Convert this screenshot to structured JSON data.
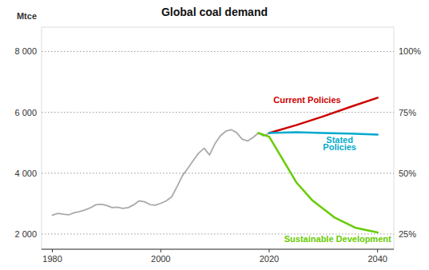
{
  "chart_data": {
    "type": "line",
    "title": "Global coal demand",
    "y_label": "Mtce",
    "xlim": [
      1978,
      2043
    ],
    "ylim": [
      1500,
      8800
    ],
    "xticks": [
      1980,
      2000,
      2020,
      2040
    ],
    "yticks": [
      {
        "value": 2000,
        "label": "2 000"
      },
      {
        "value": 4000,
        "label": "4 000"
      },
      {
        "value": 6000,
        "label": "6 000"
      },
      {
        "value": 8000,
        "label": "8 000"
      }
    ],
    "y2lim": [
      18.75,
      110
    ],
    "y2ticks": [
      {
        "value": 25,
        "label": "25%"
      },
      {
        "value": 50,
        "label": "50%"
      },
      {
        "value": 75,
        "label": "75%"
      },
      {
        "value": 100,
        "label": "100%"
      }
    ],
    "grid": true,
    "series": [
      {
        "color": "#aaaaaa",
        "x": [
          1980,
          1981,
          1982,
          1983,
          1984,
          1985,
          1986,
          1987,
          1988,
          1989,
          1990,
          1991,
          1992,
          1993,
          1994,
          1995,
          1996,
          1997,
          1998,
          1999,
          2000,
          2001,
          2002,
          2003,
          2004,
          2005,
          2006,
          2007,
          2008,
          2009,
          2010,
          2011,
          2012,
          2013,
          2014,
          2015,
          2016,
          2017,
          2018,
          2019,
          2020
        ],
        "values": [
          2620,
          2680,
          2650,
          2630,
          2700,
          2740,
          2790,
          2860,
          2960,
          2980,
          2940,
          2870,
          2880,
          2840,
          2870,
          2960,
          3090,
          3060,
          2970,
          2950,
          3010,
          3090,
          3220,
          3560,
          3920,
          4160,
          4420,
          4660,
          4820,
          4600,
          4970,
          5230,
          5380,
          5430,
          5330,
          5120,
          5060,
          5170,
          5320,
          5220,
          5320
        ]
      },
      {
        "color": "#cc0000",
        "x": [
          2020,
          2025,
          2030,
          2035,
          2040
        ],
        "values": [
          5320,
          5580,
          5870,
          6180,
          6480
        ]
      },
      {
        "color": "#00aacc",
        "x": [
          2020,
          2025,
          2030,
          2035,
          2040
        ],
        "values": [
          5320,
          5350,
          5320,
          5300,
          5270
        ]
      },
      {
        "color": "#66cc00",
        "x": [
          2018,
          2020,
          2022,
          2025,
          2028,
          2032,
          2036,
          2040
        ],
        "values": [
          5320,
          5200,
          4600,
          3700,
          3100,
          2550,
          2200,
          2050
        ]
      }
    ],
    "annotations": [
      {
        "text": "Current Policies",
        "x": 2027,
        "y": 6400,
        "color": "#cc0000"
      },
      {
        "text": "Stated",
        "x": 2033,
        "y": 5100,
        "color": "#00aacc"
      },
      {
        "text": "Policies",
        "x": 2033,
        "y": 4850,
        "color": "#00aacc"
      },
      {
        "text": "Sustainable Development",
        "x": 2037,
        "y": 1850,
        "color": "#66cc00"
      }
    ]
  }
}
